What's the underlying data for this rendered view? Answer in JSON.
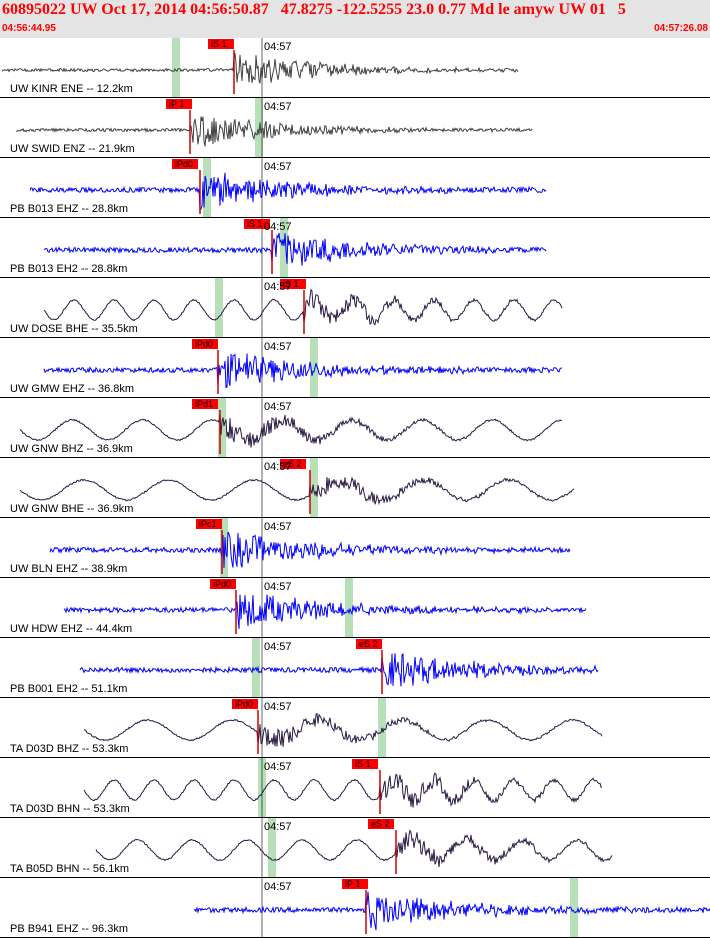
{
  "header": {
    "title": "60895022 UW Oct 17, 2014 04:56:50.87   47.8275 -122.5255 23.0 0.77 Md le amyw UW 01   5",
    "start_time": "04:56:44.95",
    "end_time": "04:57:26.08"
  },
  "minute_marker": "04:57",
  "colors": {
    "title": "#ff0000",
    "pick_box": "#ff0000",
    "trace_blue": "#0000ff",
    "trace_dark": "#2a1a44",
    "trace_gray": "#404040",
    "window": "#b8e0b8"
  },
  "traces": [
    {
      "label": "UW KINR ENE -- 12.2km",
      "pick": "iS 1",
      "color": "trace_gray",
      "signal": "local"
    },
    {
      "label": "UW SWID ENZ -- 21.9km",
      "pick": "iP 1",
      "color": "trace_gray",
      "signal": "local"
    },
    {
      "label": "PB B013 EHZ -- 28.8km",
      "pick": "iPd0",
      "color": "trace_blue",
      "signal": "noisy"
    },
    {
      "label": "PB B013 EH2 -- 28.8km",
      "pick": "iS 1",
      "color": "trace_blue",
      "signal": "noisy"
    },
    {
      "label": "UW DOSE BHE -- 35.5km",
      "pick": "iS 1",
      "color": "trace_dark",
      "signal": "longperiod"
    },
    {
      "label": "UW GMW EHZ -- 36.8km",
      "pick": "iPd0",
      "color": "trace_blue",
      "signal": "noisy"
    },
    {
      "label": "UW GNW BHZ -- 36.9km",
      "pick": "iPd1",
      "color": "trace_dark",
      "signal": "longperiod"
    },
    {
      "label": "UW GNW BHE -- 36.9km",
      "pick": "eS 2",
      "color": "trace_dark",
      "signal": "longperiod"
    },
    {
      "label": "UW BLN EHZ -- 38.9km",
      "pick": "iPc1",
      "color": "trace_blue",
      "signal": "noisy"
    },
    {
      "label": "UW HDW EHZ -- 44.4km",
      "pick": "iPd0",
      "color": "trace_blue",
      "signal": "noisy"
    },
    {
      "label": "PB B001 EH2 -- 51.1km",
      "pick": "eS 2",
      "color": "trace_blue",
      "signal": "noisy"
    },
    {
      "label": "TA D03D BHZ -- 53.3km",
      "pick": "iPd0",
      "color": "trace_dark",
      "signal": "longperiod"
    },
    {
      "label": "TA D03D BHN -- 53.3km",
      "pick": "iS 1",
      "color": "trace_dark",
      "signal": "longperiod"
    },
    {
      "label": "TA B05D BHN -- 56.1km",
      "pick": "eS 2",
      "color": "trace_dark",
      "signal": "longperiod"
    },
    {
      "label": "PB B941 EHZ -- 96.3km",
      "pick": "iP 1",
      "color": "trace_blue",
      "signal": "noisy"
    }
  ]
}
